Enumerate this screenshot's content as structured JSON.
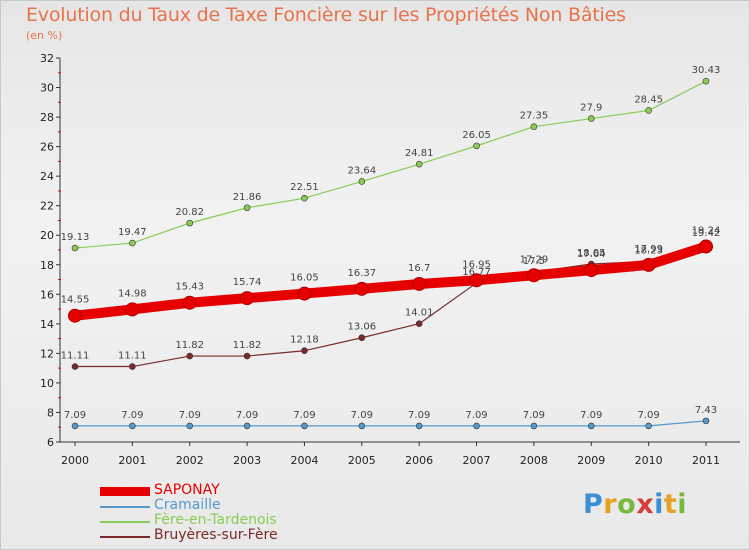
{
  "header": {
    "title": "Evolution du Taux de Taxe Foncière sur les Propriétés Non Bâties",
    "subtitle": "(en %)"
  },
  "logo": {
    "letters": [
      "P",
      "r",
      "o",
      "x",
      "i",
      "t",
      "i"
    ],
    "colors": [
      "#3a8fd6",
      "#e8a020",
      "#78b83a",
      "#d93a3a",
      "#3a8fd6",
      "#e8a020",
      "#78b83a"
    ]
  },
  "chart_data": {
    "type": "line",
    "x": [
      "2000",
      "2001",
      "2002",
      "2003",
      "2004",
      "2005",
      "2006",
      "2007",
      "2008",
      "2009",
      "2010",
      "2011"
    ],
    "ylim": [
      6,
      32
    ],
    "yticks": [
      6,
      8,
      10,
      12,
      14,
      16,
      18,
      20,
      22,
      24,
      26,
      28,
      30,
      32
    ],
    "grid": false,
    "legend_position": "bottom-left",
    "series": [
      {
        "name": "SAPONAY",
        "color": "#e60000",
        "values": [
          14.55,
          14.98,
          15.43,
          15.74,
          16.05,
          16.37,
          16.7,
          16.95,
          17.29,
          17.64,
          17.99,
          19.24
        ],
        "labels": [
          "14.55",
          "14.98",
          "15.43",
          "15.74",
          "16.05",
          "16.37",
          "16.7",
          "16.95",
          "17.29",
          "17.64",
          "17.99",
          "19.24"
        ]
      },
      {
        "name": "Cramaille",
        "color": "#5599cc",
        "values": [
          7.09,
          7.09,
          7.09,
          7.09,
          7.09,
          7.09,
          7.09,
          7.09,
          7.09,
          7.09,
          7.09,
          7.43
        ],
        "labels": [
          "7.09",
          "7.09",
          "7.09",
          "7.09",
          "7.09",
          "7.09",
          "7.09",
          "7.09",
          "7.09",
          "7.09",
          "7.09",
          "7.43"
        ]
      },
      {
        "name": "Fère-en-Tardenois",
        "color": "#88cc55",
        "values": [
          19.13,
          19.47,
          20.82,
          21.86,
          22.51,
          23.64,
          24.81,
          26.05,
          27.35,
          27.9,
          28.45,
          30.43
        ],
        "labels": [
          "19.13",
          "19.47",
          "20.82",
          "21.86",
          "22.51",
          "23.64",
          "24.81",
          "26.05",
          "27.35",
          "27.9",
          "28.45",
          "30.43"
        ]
      },
      {
        "name": "Bruyères-sur-Fère",
        "color": "#7a2a2a",
        "values": [
          11.11,
          11.11,
          11.82,
          11.82,
          12.18,
          13.06,
          14.01,
          16.77,
          17.5,
          18.05,
          18.23,
          19.42
        ],
        "labels": [
          "11.11",
          "11.11",
          "11.82",
          "11.82",
          "12.18",
          "13.06",
          "14.01",
          "16.77",
          "17.5",
          "18.05",
          "18.23",
          "19.42"
        ]
      }
    ]
  }
}
